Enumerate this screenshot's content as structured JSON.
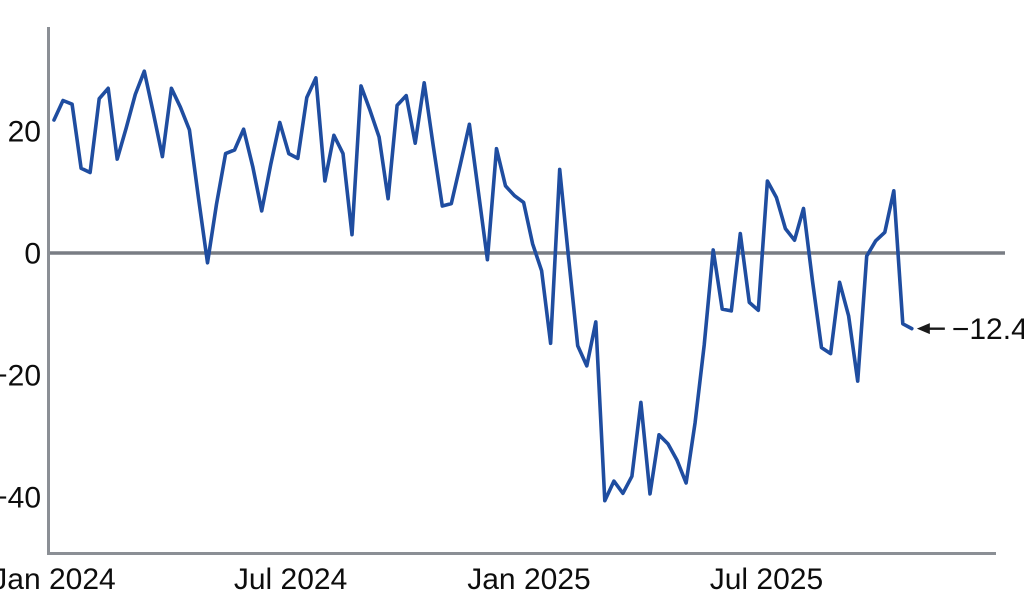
{
  "chart_data": {
    "type": "line",
    "title": "",
    "xlabel": "",
    "ylabel": "",
    "x_unit": "weeks since 2024-01-01",
    "series": [
      {
        "name": "index",
        "values": [
          21.8,
          25.0,
          24.4,
          13.9,
          13.2,
          25.3,
          27.0,
          15.4,
          20.5,
          26.0,
          29.8,
          23.0,
          15.8,
          27.0,
          23.9,
          20.2,
          9.0,
          -1.6,
          8.0,
          16.3,
          16.9,
          20.3,
          14.2,
          6.9,
          14.5,
          21.4,
          16.3,
          15.5,
          25.5,
          28.7,
          11.8,
          19.3,
          16.3,
          3.0,
          27.4,
          23.4,
          19.0,
          8.9,
          24.2,
          25.8,
          18.0,
          27.9,
          17.5,
          7.7,
          8.1,
          14.5,
          21.1,
          10.0,
          -1.1,
          17.1,
          11.0,
          9.4,
          8.3,
          1.5,
          -2.9,
          -14.8,
          13.7,
          -1.0,
          -15.2,
          -18.5,
          -11.3,
          -40.6,
          -37.4,
          -39.4,
          -36.6,
          -24.5,
          -39.5,
          -29.8,
          -31.3,
          -34.0,
          -37.7,
          -27.8,
          -15.1,
          0.5,
          -9.2,
          -9.5,
          3.2,
          -8.1,
          -9.4,
          11.8,
          9.1,
          4.0,
          2.1,
          7.3,
          -4.6,
          -15.5,
          -16.5,
          -4.8,
          -10.3,
          -21.0,
          -0.5,
          2.0,
          3.4,
          10.2,
          -11.6,
          -12.4
        ]
      }
    ],
    "x_ticks": [
      {
        "label": "Jan 2024",
        "week": 0
      },
      {
        "label": "Jul 2024",
        "week": 26.2
      },
      {
        "label": "Jan 2025",
        "week": 52.6
      },
      {
        "label": "Jul 2025",
        "week": 78.9
      }
    ],
    "y_ticks": [
      {
        "label": "20",
        "value": 20
      },
      {
        "label": "0",
        "value": 0
      },
      {
        "label": "−20",
        "value": -20
      },
      {
        "label": "−40",
        "value": -40
      }
    ],
    "ylim": [
      -49,
      37
    ],
    "zero_line": true,
    "grid": false,
    "legend": "none",
    "annotation": {
      "text": "−12.4",
      "value": -12.4
    },
    "colors": {
      "line": "#1f4da0",
      "zero_line": "#797d84",
      "axis": "#8b8f95",
      "text": "#0d0d0d",
      "annotation": "#1a1a1a",
      "background": "#ffffff"
    }
  }
}
